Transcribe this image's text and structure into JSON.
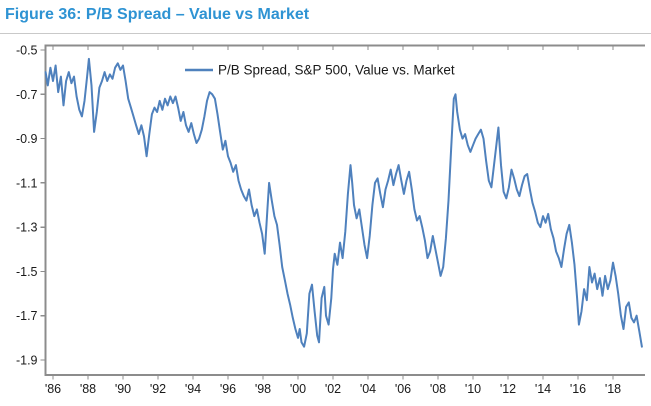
{
  "header": {
    "title": "Figure 36: P/B Spread – Value vs Market"
  },
  "colors": {
    "title": "#2E93D3",
    "rule": "#C9C9C9",
    "axis": "#8C8C8C",
    "tick_label": "#1A1A1A",
    "line": "#4F81BD",
    "background": "#FFFFFF"
  },
  "chart_data": {
    "type": "line",
    "title": "Figure 36: P/B Spread – Value vs Market",
    "xlabel": "",
    "ylabel": "",
    "grid": false,
    "legend_position": "top-center",
    "xlim": [
      1985.57,
      2019.83
    ],
    "ylim": [
      -1.97,
      -0.48
    ],
    "x_ticks": {
      "years": [
        1986,
        1988,
        1990,
        1992,
        1994,
        1996,
        1998,
        2000,
        2002,
        2004,
        2006,
        2008,
        2010,
        2012,
        2014,
        2016,
        2018
      ],
      "labels": [
        "'86",
        "'88",
        "'90",
        "'92",
        "'94",
        "'96",
        "'98",
        "'00",
        "'02",
        "'04",
        "'06",
        "'08",
        "'10",
        "'12",
        "'14",
        "'16",
        "'18"
      ]
    },
    "y_ticks": {
      "values": [
        -0.5,
        -0.7,
        -0.9,
        -1.1,
        -1.3,
        -1.5,
        -1.7,
        -1.9
      ],
      "labels": [
        "-0.5",
        "-0.7",
        "-0.9",
        "-1.1",
        "-1.3",
        "-1.5",
        "-1.7",
        "-1.9"
      ]
    },
    "series": [
      {
        "name": "P/B Spread, S&P 500, Value vs. Market",
        "color": "#4F81BD",
        "points": [
          [
            1985.58,
            -0.6
          ],
          [
            1985.7,
            -0.66
          ],
          [
            1985.85,
            -0.58
          ],
          [
            1986.0,
            -0.64
          ],
          [
            1986.15,
            -0.57
          ],
          [
            1986.3,
            -0.69
          ],
          [
            1986.45,
            -0.62
          ],
          [
            1986.6,
            -0.75
          ],
          [
            1986.75,
            -0.64
          ],
          [
            1986.9,
            -0.6
          ],
          [
            1987.05,
            -0.65
          ],
          [
            1987.2,
            -0.62
          ],
          [
            1987.35,
            -0.71
          ],
          [
            1987.5,
            -0.77
          ],
          [
            1987.65,
            -0.8
          ],
          [
            1987.8,
            -0.73
          ],
          [
            1987.95,
            -0.62
          ],
          [
            1988.05,
            -0.54
          ],
          [
            1988.2,
            -0.66
          ],
          [
            1988.35,
            -0.87
          ],
          [
            1988.5,
            -0.78
          ],
          [
            1988.65,
            -0.67
          ],
          [
            1988.8,
            -0.64
          ],
          [
            1988.95,
            -0.6
          ],
          [
            1989.1,
            -0.64
          ],
          [
            1989.25,
            -0.61
          ],
          [
            1989.4,
            -0.63
          ],
          [
            1989.55,
            -0.58
          ],
          [
            1989.7,
            -0.56
          ],
          [
            1989.85,
            -0.59
          ],
          [
            1990.0,
            -0.57
          ],
          [
            1990.15,
            -0.64
          ],
          [
            1990.3,
            -0.72
          ],
          [
            1990.45,
            -0.76
          ],
          [
            1990.6,
            -0.8
          ],
          [
            1990.75,
            -0.84
          ],
          [
            1990.9,
            -0.88
          ],
          [
            1991.05,
            -0.84
          ],
          [
            1991.2,
            -0.89
          ],
          [
            1991.35,
            -0.98
          ],
          [
            1991.5,
            -0.88
          ],
          [
            1991.65,
            -0.79
          ],
          [
            1991.8,
            -0.76
          ],
          [
            1991.95,
            -0.78
          ],
          [
            1992.1,
            -0.73
          ],
          [
            1992.25,
            -0.77
          ],
          [
            1992.4,
            -0.72
          ],
          [
            1992.55,
            -0.75
          ],
          [
            1992.7,
            -0.71
          ],
          [
            1992.85,
            -0.74
          ],
          [
            1993.0,
            -0.71
          ],
          [
            1993.15,
            -0.76
          ],
          [
            1993.3,
            -0.82
          ],
          [
            1993.45,
            -0.78
          ],
          [
            1993.6,
            -0.84
          ],
          [
            1993.75,
            -0.87
          ],
          [
            1993.9,
            -0.83
          ],
          [
            1994.05,
            -0.88
          ],
          [
            1994.2,
            -0.92
          ],
          [
            1994.35,
            -0.9
          ],
          [
            1994.5,
            -0.86
          ],
          [
            1994.65,
            -0.8
          ],
          [
            1994.8,
            -0.73
          ],
          [
            1994.95,
            -0.69
          ],
          [
            1995.1,
            -0.7
          ],
          [
            1995.25,
            -0.72
          ],
          [
            1995.4,
            -0.79
          ],
          [
            1995.55,
            -0.87
          ],
          [
            1995.7,
            -0.95
          ],
          [
            1995.85,
            -0.91
          ],
          [
            1996.0,
            -0.98
          ],
          [
            1996.15,
            -1.01
          ],
          [
            1996.3,
            -1.05
          ],
          [
            1996.45,
            -1.02
          ],
          [
            1996.6,
            -1.09
          ],
          [
            1996.75,
            -1.13
          ],
          [
            1996.9,
            -1.16
          ],
          [
            1997.05,
            -1.18
          ],
          [
            1997.2,
            -1.13
          ],
          [
            1997.35,
            -1.2
          ],
          [
            1997.5,
            -1.25
          ],
          [
            1997.65,
            -1.22
          ],
          [
            1997.8,
            -1.28
          ],
          [
            1997.95,
            -1.33
          ],
          [
            1998.1,
            -1.42
          ],
          [
            1998.25,
            -1.22
          ],
          [
            1998.35,
            -1.1
          ],
          [
            1998.5,
            -1.18
          ],
          [
            1998.65,
            -1.25
          ],
          [
            1998.8,
            -1.29
          ],
          [
            1998.95,
            -1.38
          ],
          [
            1999.1,
            -1.48
          ],
          [
            1999.25,
            -1.54
          ],
          [
            1999.4,
            -1.6
          ],
          [
            1999.55,
            -1.65
          ],
          [
            1999.7,
            -1.71
          ],
          [
            1999.85,
            -1.76
          ],
          [
            2000.0,
            -1.8
          ],
          [
            2000.1,
            -1.76
          ],
          [
            2000.2,
            -1.82
          ],
          [
            2000.35,
            -1.84
          ],
          [
            2000.5,
            -1.78
          ],
          [
            2000.65,
            -1.6
          ],
          [
            2000.8,
            -1.56
          ],
          [
            2000.95,
            -1.68
          ],
          [
            2001.1,
            -1.79
          ],
          [
            2001.2,
            -1.82
          ],
          [
            2001.35,
            -1.62
          ],
          [
            2001.5,
            -1.57
          ],
          [
            2001.6,
            -1.7
          ],
          [
            2001.75,
            -1.74
          ],
          [
            2001.9,
            -1.62
          ],
          [
            2002.0,
            -1.49
          ],
          [
            2002.1,
            -1.42
          ],
          [
            2002.25,
            -1.47
          ],
          [
            2002.4,
            -1.37
          ],
          [
            2002.55,
            -1.44
          ],
          [
            2002.7,
            -1.32
          ],
          [
            2002.85,
            -1.15
          ],
          [
            2003.0,
            -1.02
          ],
          [
            2003.1,
            -1.1
          ],
          [
            2003.2,
            -1.2
          ],
          [
            2003.35,
            -1.26
          ],
          [
            2003.5,
            -1.22
          ],
          [
            2003.65,
            -1.3
          ],
          [
            2003.8,
            -1.38
          ],
          [
            2003.95,
            -1.44
          ],
          [
            2004.1,
            -1.34
          ],
          [
            2004.25,
            -1.2
          ],
          [
            2004.4,
            -1.1
          ],
          [
            2004.55,
            -1.08
          ],
          [
            2004.7,
            -1.15
          ],
          [
            2004.85,
            -1.21
          ],
          [
            2005.0,
            -1.13
          ],
          [
            2005.15,
            -1.09
          ],
          [
            2005.3,
            -1.04
          ],
          [
            2005.45,
            -1.11
          ],
          [
            2005.6,
            -1.06
          ],
          [
            2005.75,
            -1.02
          ],
          [
            2005.9,
            -1.09
          ],
          [
            2006.05,
            -1.15
          ],
          [
            2006.2,
            -1.09
          ],
          [
            2006.35,
            -1.05
          ],
          [
            2006.5,
            -1.13
          ],
          [
            2006.65,
            -1.22
          ],
          [
            2006.8,
            -1.27
          ],
          [
            2006.95,
            -1.25
          ],
          [
            2007.1,
            -1.3
          ],
          [
            2007.25,
            -1.36
          ],
          [
            2007.4,
            -1.44
          ],
          [
            2007.55,
            -1.41
          ],
          [
            2007.7,
            -1.34
          ],
          [
            2007.85,
            -1.4
          ],
          [
            2008.0,
            -1.46
          ],
          [
            2008.15,
            -1.52
          ],
          [
            2008.3,
            -1.48
          ],
          [
            2008.45,
            -1.35
          ],
          [
            2008.6,
            -1.18
          ],
          [
            2008.75,
            -0.95
          ],
          [
            2008.9,
            -0.72
          ],
          [
            2009.0,
            -0.7
          ],
          [
            2009.1,
            -0.78
          ],
          [
            2009.25,
            -0.86
          ],
          [
            2009.4,
            -0.9
          ],
          [
            2009.55,
            -0.88
          ],
          [
            2009.7,
            -0.93
          ],
          [
            2009.85,
            -0.96
          ],
          [
            2010.0,
            -0.93
          ],
          [
            2010.15,
            -0.9
          ],
          [
            2010.3,
            -0.88
          ],
          [
            2010.45,
            -0.86
          ],
          [
            2010.6,
            -0.9
          ],
          [
            2010.75,
            -1.0
          ],
          [
            2010.9,
            -1.09
          ],
          [
            2011.05,
            -1.12
          ],
          [
            2011.2,
            -1.02
          ],
          [
            2011.35,
            -0.92
          ],
          [
            2011.45,
            -0.85
          ],
          [
            2011.6,
            -1.02
          ],
          [
            2011.75,
            -1.14
          ],
          [
            2011.9,
            -1.17
          ],
          [
            2012.05,
            -1.12
          ],
          [
            2012.2,
            -1.04
          ],
          [
            2012.35,
            -1.08
          ],
          [
            2012.5,
            -1.13
          ],
          [
            2012.65,
            -1.16
          ],
          [
            2012.8,
            -1.11
          ],
          [
            2012.95,
            -1.07
          ],
          [
            2013.1,
            -1.06
          ],
          [
            2013.25,
            -1.13
          ],
          [
            2013.4,
            -1.19
          ],
          [
            2013.55,
            -1.23
          ],
          [
            2013.7,
            -1.28
          ],
          [
            2013.85,
            -1.3
          ],
          [
            2014.0,
            -1.25
          ],
          [
            2014.15,
            -1.28
          ],
          [
            2014.3,
            -1.24
          ],
          [
            2014.45,
            -1.31
          ],
          [
            2014.6,
            -1.35
          ],
          [
            2014.75,
            -1.41
          ],
          [
            2014.9,
            -1.44
          ],
          [
            2015.05,
            -1.48
          ],
          [
            2015.2,
            -1.4
          ],
          [
            2015.35,
            -1.33
          ],
          [
            2015.5,
            -1.29
          ],
          [
            2015.65,
            -1.37
          ],
          [
            2015.8,
            -1.47
          ],
          [
            2015.95,
            -1.62
          ],
          [
            2016.05,
            -1.74
          ],
          [
            2016.2,
            -1.68
          ],
          [
            2016.35,
            -1.58
          ],
          [
            2016.5,
            -1.63
          ],
          [
            2016.65,
            -1.48
          ],
          [
            2016.8,
            -1.55
          ],
          [
            2016.95,
            -1.51
          ],
          [
            2017.1,
            -1.58
          ],
          [
            2017.25,
            -1.53
          ],
          [
            2017.4,
            -1.61
          ],
          [
            2017.55,
            -1.52
          ],
          [
            2017.7,
            -1.58
          ],
          [
            2017.85,
            -1.54
          ],
          [
            2018.0,
            -1.46
          ],
          [
            2018.15,
            -1.52
          ],
          [
            2018.3,
            -1.6
          ],
          [
            2018.45,
            -1.7
          ],
          [
            2018.6,
            -1.76
          ],
          [
            2018.75,
            -1.66
          ],
          [
            2018.9,
            -1.64
          ],
          [
            2019.05,
            -1.71
          ],
          [
            2019.2,
            -1.73
          ],
          [
            2019.35,
            -1.7
          ],
          [
            2019.5,
            -1.77
          ],
          [
            2019.65,
            -1.84
          ]
        ]
      }
    ]
  }
}
